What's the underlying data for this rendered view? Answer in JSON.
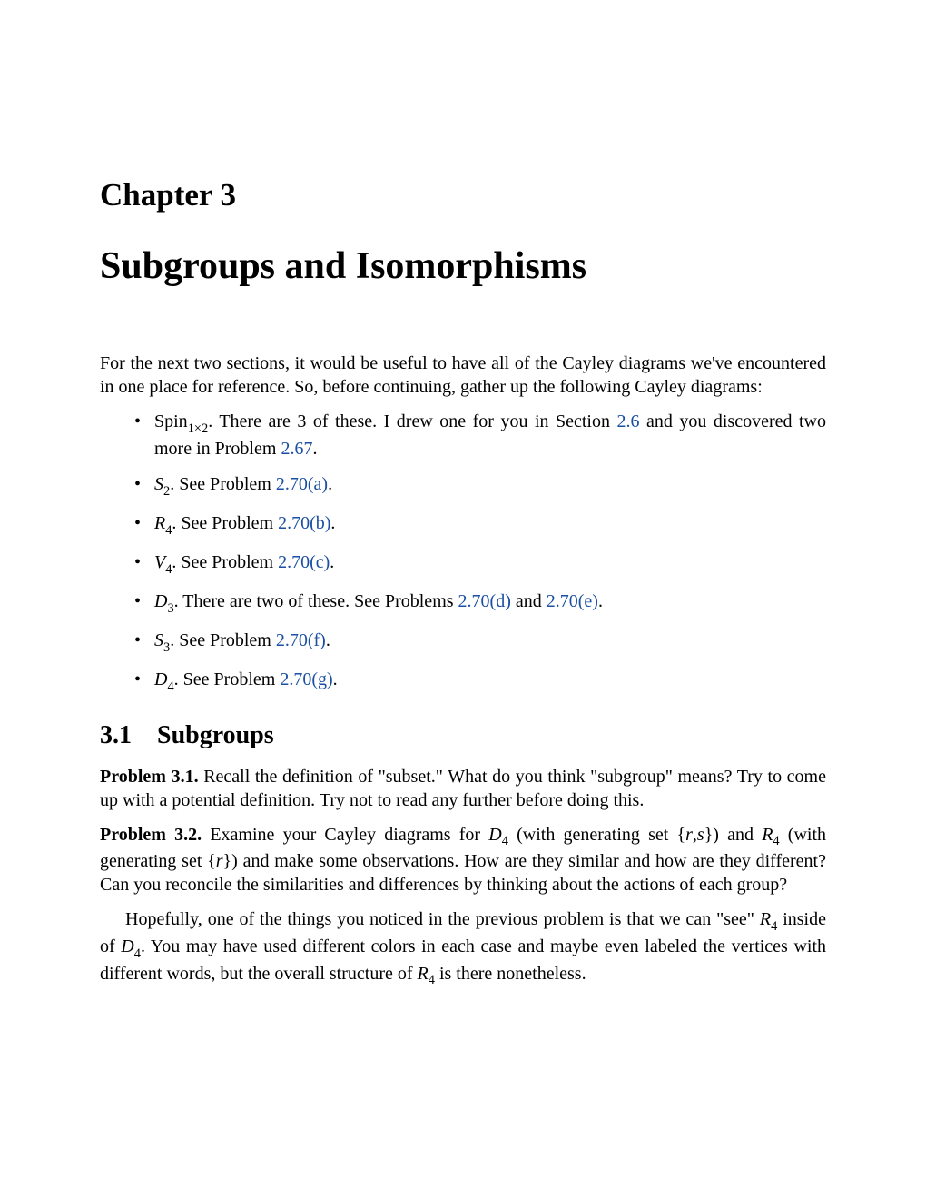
{
  "chapterLabel": "Chapter 3",
  "chapterTitle": "Subgroups and Isomorphisms",
  "introPara": "For the next two sections, it would be useful to have all of the Cayley diagrams we've encountered in one place for reference. So, before continuing, gather up the following Cayley diagrams:",
  "bullets": {
    "b1a": "Spin",
    "b1sub": "1×2",
    "b1b": ". There are 3 of these. I drew one for you in Section ",
    "b1link1": "2.6",
    "b1c": " and you discovered two more in Problem ",
    "b1link2": "2.67",
    "b1d": ".",
    "b2sym": "S",
    "b2sub": "2",
    "b2a": ". See Problem ",
    "b2link": "2.70(a)",
    "b2b": ".",
    "b3sym": "R",
    "b3sub": "4",
    "b3a": ". See Problem ",
    "b3link": "2.70(b)",
    "b3b": ".",
    "b4sym": "V",
    "b4sub": "4",
    "b4a": ". See Problem ",
    "b4link": "2.70(c)",
    "b4b": ".",
    "b5sym": "D",
    "b5sub": "3",
    "b5a": ". There are two of these. See Problems ",
    "b5link1": "2.70(d)",
    "b5mid": " and ",
    "b5link2": "2.70(e)",
    "b5b": ".",
    "b6sym": "S",
    "b6sub": "3",
    "b6a": ". See Problem ",
    "b6link": "2.70(f)",
    "b6b": ".",
    "b7sym": "D",
    "b7sub": "4",
    "b7a": ". See Problem ",
    "b7link": "2.70(g)",
    "b7b": "."
  },
  "sectionNum": "3.1",
  "sectionTitle": "Subgroups",
  "problem1": {
    "label": "Problem 3.1.",
    "text": " Recall the definition of \"subset.\" What do you think \"subgroup\" means? Try to come up with a potential definition. Try not to read any further before doing this."
  },
  "problem2": {
    "label": "Problem 3.2.",
    "a": " Examine your Cayley diagrams for ",
    "D": "D",
    "D4sub": "4",
    "b": " (with generating set {",
    "r": "r",
    "comma": ",",
    "s": "s",
    "c": "}) and ",
    "R": "R",
    "R4sub": "4",
    "d": " (with generating set {",
    "e": "}) and make some observations. How are they similar and how are they different? Can you reconcile the similarities and differences by thinking about the actions of each group?"
  },
  "closing": {
    "a": "Hopefully, one of the things you noticed in the previous problem is that we can \"see\" ",
    "R": "R",
    "R4sub": "4",
    "b": " inside of ",
    "D": "D",
    "D4sub": "4",
    "c": ". You may have used different colors in each case and maybe even labeled the vertices with different words, but the overall structure of ",
    "d": " is there nonetheless."
  },
  "colors": {
    "link": "#1a4fa3",
    "text": "#000000",
    "bg": "#ffffff"
  }
}
